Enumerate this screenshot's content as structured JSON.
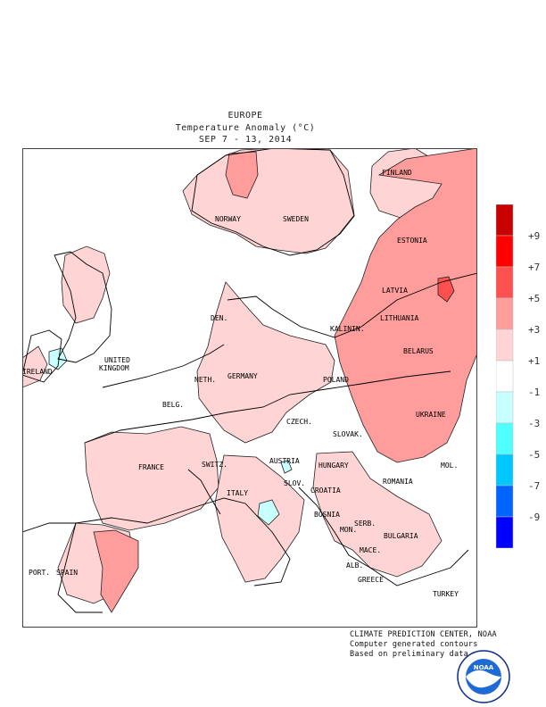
{
  "header": {
    "region": "EUROPE",
    "variable": "Temperature Anomaly (°C)",
    "period": "SEP 7 - 13, 2014"
  },
  "countries": [
    {
      "id": "finland",
      "label": "FINLAND"
    },
    {
      "id": "norway",
      "label": "NORWAY"
    },
    {
      "id": "sweden",
      "label": "SWEDEN"
    },
    {
      "id": "estonia",
      "label": "ESTONIA"
    },
    {
      "id": "latvia",
      "label": "LATVIA"
    },
    {
      "id": "lithuania",
      "label": "LITHUANIA"
    },
    {
      "id": "kalinin",
      "label": "KALININ."
    },
    {
      "id": "den",
      "label": "DEN."
    },
    {
      "id": "uk",
      "label": "UNITED\nKINGDOM"
    },
    {
      "id": "ireland",
      "label": "IRELAND"
    },
    {
      "id": "belarus",
      "label": "BELARUS"
    },
    {
      "id": "neth",
      "label": "NETH."
    },
    {
      "id": "germany",
      "label": "GERMANY"
    },
    {
      "id": "poland",
      "label": "POLAND"
    },
    {
      "id": "belg",
      "label": "BELG."
    },
    {
      "id": "czech",
      "label": "CZECH."
    },
    {
      "id": "slovak",
      "label": "SLOVAK."
    },
    {
      "id": "ukraine",
      "label": "UKRAINE"
    },
    {
      "id": "france",
      "label": "FRANCE"
    },
    {
      "id": "switz",
      "label": "SWITZ."
    },
    {
      "id": "austria",
      "label": "AUSTRIA"
    },
    {
      "id": "hungary",
      "label": "HUNGARY"
    },
    {
      "id": "mol",
      "label": "MOL."
    },
    {
      "id": "slov",
      "label": "SLOV."
    },
    {
      "id": "croatia",
      "label": "CROATIA"
    },
    {
      "id": "romania",
      "label": "ROMANIA"
    },
    {
      "id": "italy",
      "label": "ITALY"
    },
    {
      "id": "bosnia",
      "label": "BOSNIA"
    },
    {
      "id": "serb",
      "label": "SERB."
    },
    {
      "id": "mon",
      "label": "MON."
    },
    {
      "id": "bulgaria",
      "label": "BULGARIA"
    },
    {
      "id": "mace",
      "label": "MACE."
    },
    {
      "id": "port",
      "label": "PORT."
    },
    {
      "id": "spain",
      "label": "SPAIN"
    },
    {
      "id": "alb",
      "label": "ALB."
    },
    {
      "id": "greece",
      "label": "GREECE"
    },
    {
      "id": "turkey",
      "label": "TURKEY"
    }
  ],
  "legend": {
    "colors": [
      "#c80000",
      "#ff0000",
      "#ff5050",
      "#ff9c9c",
      "#ffd4d4",
      "#ffffff",
      "#c8ffff",
      "#50ffff",
      "#00c8ff",
      "#0064ff",
      "#0000ff"
    ],
    "labels": [
      "+9",
      "+7",
      "+5",
      "+3",
      "+1",
      "-1",
      "-3",
      "-5",
      "-7",
      "-9"
    ]
  },
  "credits": [
    "CLIMATE PREDICTION CENTER, NOAA",
    "Computer generated contours",
    "Based on preliminary data"
  ],
  "logo": {
    "name": "noaa-logo",
    "text": "NOAA",
    "ring_text": "NATIONAL OCEANIC AND ATMOSPHERIC ADMINISTRATION · U.S. DEPARTMENT OF COMMERCE"
  }
}
